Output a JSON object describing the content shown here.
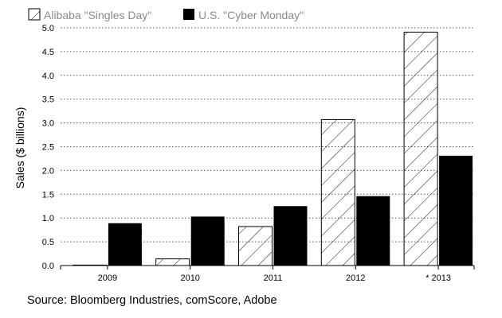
{
  "chart_data": {
    "type": "bar",
    "title": "",
    "xlabel": "",
    "ylabel": "Sales ($ billions)",
    "ylim": [
      0,
      5.0
    ],
    "yticks": [
      "0.0",
      "0.5",
      "1.0",
      "1.5",
      "2.0",
      "2.5",
      "3.0",
      "3.5",
      "4.0",
      "4.5",
      "5.0"
    ],
    "grid": "horizontal dotted",
    "legend_position": "top-left",
    "categories": [
      "2009",
      "2010",
      "2011",
      "2012",
      "* 2013"
    ],
    "series": [
      {
        "name": "Alibaba \"Singles Day\"",
        "pattern": "hatched",
        "values": [
          0.01,
          0.14,
          0.82,
          3.07,
          4.91
        ]
      },
      {
        "name": "U.S. \"Cyber Monday\"",
        "pattern": "solid",
        "values": [
          0.89,
          1.03,
          1.25,
          1.46,
          2.31
        ]
      }
    ]
  },
  "source": "Source: Bloomberg Industries, comScore, Adobe",
  "colors": {
    "solid_fill": "#000000",
    "hatch_stroke": "#000000",
    "grid": "#555555",
    "legend_text": "#8a8a8a"
  }
}
